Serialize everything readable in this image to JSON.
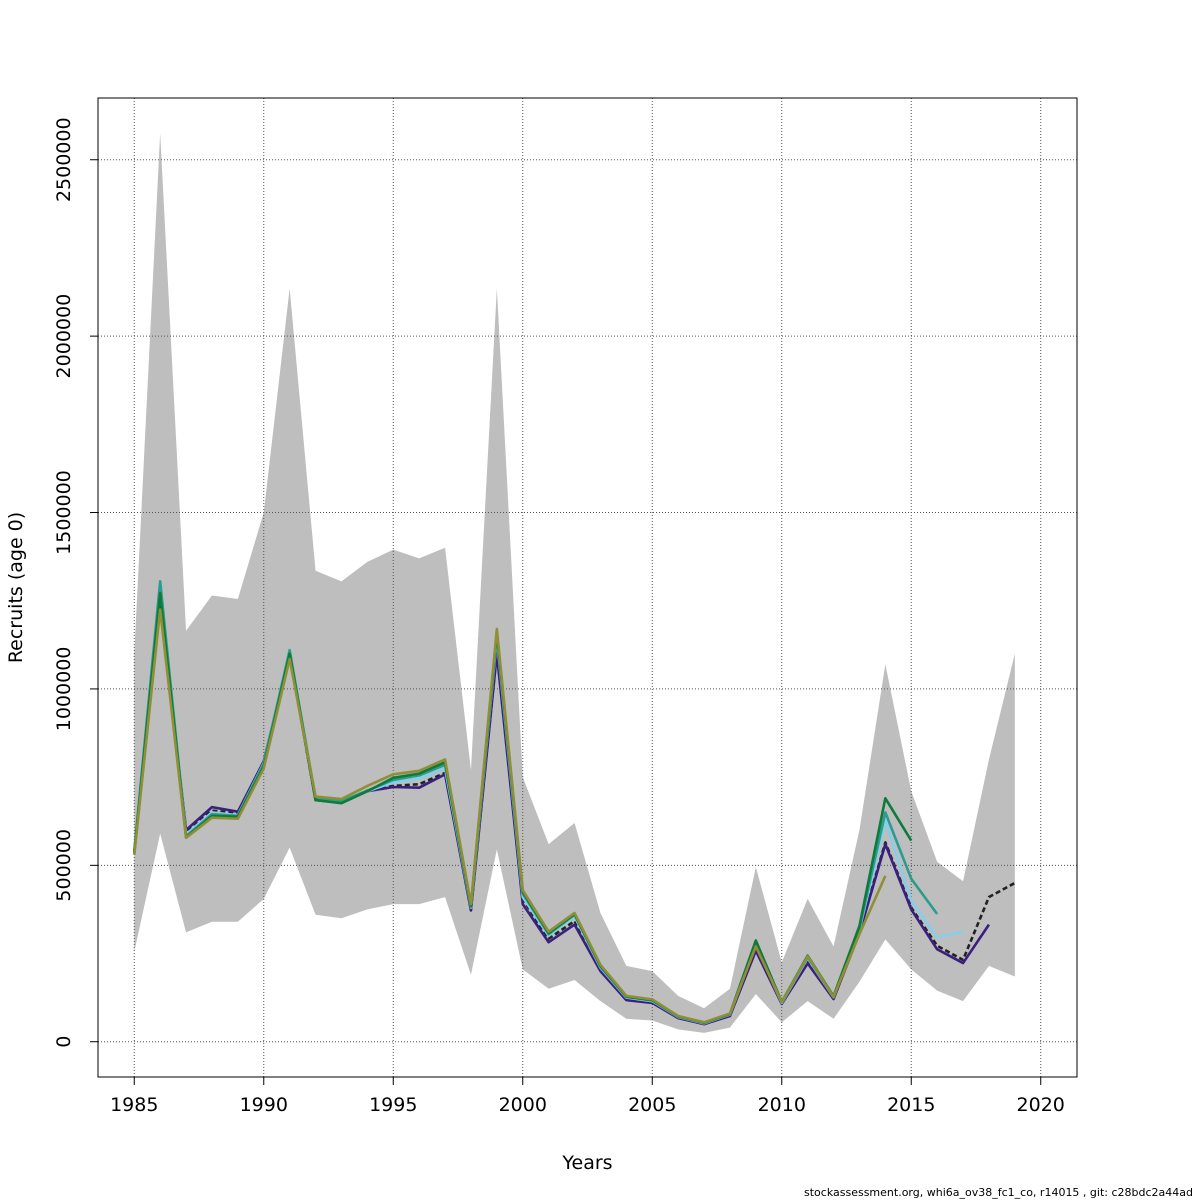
{
  "chart_data": {
    "type": "line",
    "xlabel": "Years",
    "ylabel": "Recruits (age 0)",
    "xlim": [
      1983.6,
      2021.4
    ],
    "ylim": [
      -100000,
      2675000
    ],
    "x_ticks": [
      1985,
      1990,
      1995,
      2000,
      2005,
      2010,
      2015,
      2020
    ],
    "x_tick_labels": [
      "1985",
      "1990",
      "1995",
      "2000",
      "2005",
      "2010",
      "2015",
      "2020"
    ],
    "y_ticks": [
      0,
      500000,
      1000000,
      1500000,
      2000000,
      2500000
    ],
    "y_tick_labels": [
      "0",
      "500000",
      "1000000",
      "1500000",
      "2000000",
      "2500000"
    ],
    "grid": true,
    "confidence_band": {
      "color": "#bebebe",
      "x": [
        1985,
        1986,
        1987,
        1988,
        1989,
        1990,
        1991,
        1992,
        1993,
        1994,
        1995,
        1996,
        1997,
        1998,
        1999,
        2000,
        2001,
        2002,
        2003,
        2004,
        2005,
        2006,
        2007,
        2008,
        2009,
        2010,
        2011,
        2012,
        2013,
        2014,
        2015,
        2016,
        2017,
        2018,
        2019
      ],
      "upper": [
        1100000,
        2575000,
        1165000,
        1265000,
        1255000,
        1500000,
        2135000,
        1335000,
        1305000,
        1360000,
        1395000,
        1370000,
        1400000,
        770000,
        2135000,
        750000,
        560000,
        620000,
        365000,
        215000,
        200000,
        130000,
        95000,
        150000,
        495000,
        225000,
        405000,
        270000,
        600000,
        1070000,
        710000,
        510000,
        455000,
        800000,
        1100000
      ],
      "lower": [
        255000,
        590000,
        310000,
        340000,
        340000,
        405000,
        550000,
        360000,
        350000,
        375000,
        390000,
        390000,
        410000,
        190000,
        545000,
        205000,
        150000,
        175000,
        115000,
        65000,
        60000,
        35000,
        25000,
        40000,
        135000,
        55000,
        115000,
        65000,
        170000,
        290000,
        205000,
        145000,
        115000,
        215000,
        185000
      ]
    },
    "series": [
      {
        "color": "#222222",
        "dashed": true,
        "x": [
          1985,
          1986,
          1987,
          1988,
          1989,
          1990,
          1991,
          1992,
          1993,
          1994,
          1995,
          1996,
          1997,
          1998,
          1999,
          2000,
          2001,
          2002,
          2003,
          2004,
          2005,
          2006,
          2007,
          2008,
          2009,
          2010,
          2011,
          2012,
          2013,
          2014,
          2015,
          2016,
          2017,
          2018,
          2019
        ],
        "values": [
          535000,
          1250000,
          595000,
          655000,
          648000,
          790000,
          1095000,
          685000,
          678000,
          712000,
          725000,
          730000,
          762000,
          375000,
          1105000,
          405000,
          292000,
          342000,
          205000,
          122000,
          112000,
          68000,
          50000,
          74000,
          262000,
          108000,
          228000,
          123000,
          312000,
          565000,
          380000,
          272000,
          232000,
          410000,
          450000
        ]
      },
      {
        "color": "#3b1f7e",
        "dashed": false,
        "x": [
          1985,
          1986,
          1987,
          1988,
          1989,
          1990,
          1991,
          1992,
          1993,
          1994,
          1995,
          1996,
          1997,
          1998,
          1999,
          2000,
          2001,
          2002,
          2003,
          2004,
          2005,
          2006,
          2007,
          2008,
          2009,
          2010,
          2011,
          2012,
          2013,
          2014,
          2015,
          2016,
          2017,
          2018
        ],
        "values": [
          535000,
          1250000,
          600000,
          665000,
          652000,
          795000,
          1100000,
          685000,
          678000,
          710000,
          722000,
          720000,
          758000,
          372000,
          1100000,
          390000,
          282000,
          332000,
          200000,
          118000,
          110000,
          67000,
          50000,
          73000,
          258000,
          107000,
          222000,
          121000,
          308000,
          560000,
          375000,
          262000,
          223000,
          332000
        ]
      },
      {
        "color": "#87ceeb",
        "dashed": false,
        "x": [
          1985,
          1986,
          1987,
          1988,
          1989,
          1990,
          1991,
          1992,
          1993,
          1994,
          1995,
          1996,
          1997,
          1998,
          1999,
          2000,
          2001,
          2002,
          2003,
          2004,
          2005,
          2006,
          2007,
          2008,
          2009,
          2010,
          2011,
          2012,
          2013,
          2014,
          2015,
          2016,
          2017
        ],
        "values": [
          538000,
          1290000,
          588000,
          650000,
          642000,
          790000,
          1110000,
          688000,
          680000,
          710000,
          735000,
          745000,
          775000,
          380000,
          1145000,
          410000,
          300000,
          355000,
          210000,
          125000,
          115000,
          70000,
          52000,
          77000,
          275000,
          110000,
          237000,
          126000,
          318000,
          625000,
          400000,
          295000,
          312000
        ]
      },
      {
        "color": "#2a9d8f",
        "dashed": false,
        "x": [
          1985,
          1986,
          1987,
          1988,
          1989,
          1990,
          1991,
          1992,
          1993,
          1994,
          1995,
          1996,
          1997,
          1998,
          1999,
          2000,
          2001,
          2002,
          2003,
          2004,
          2005,
          2006,
          2007,
          2008,
          2009,
          2010,
          2011,
          2012,
          2013,
          2014,
          2015,
          2016
        ],
        "values": [
          540000,
          1305000,
          582000,
          645000,
          640000,
          788000,
          1110000,
          690000,
          682000,
          712000,
          742000,
          755000,
          785000,
          382000,
          1155000,
          420000,
          305000,
          360000,
          213000,
          127000,
          117000,
          71000,
          53000,
          78000,
          280000,
          112000,
          240000,
          127000,
          322000,
          650000,
          462000,
          362000
        ]
      },
      {
        "color": "#0f7a3a",
        "dashed": false,
        "x": [
          1985,
          1986,
          1987,
          1988,
          1989,
          1990,
          1991,
          1992,
          1993,
          1994,
          1995,
          1996,
          1997,
          1998,
          1999,
          2000,
          2001,
          2002,
          2003,
          2004,
          2005,
          2006,
          2007,
          2008,
          2009,
          2010,
          2011,
          2012,
          2013,
          2014,
          2015
        ],
        "values": [
          535000,
          1272000,
          580000,
          640000,
          638000,
          780000,
          1100000,
          685000,
          676000,
          710000,
          748000,
          760000,
          792000,
          385000,
          1160000,
          425000,
          308000,
          362000,
          215000,
          128000,
          118000,
          72000,
          54000,
          79000,
          287000,
          113000,
          244000,
          129000,
          328000,
          690000,
          570000
        ]
      },
      {
        "color": "#8f8f35",
        "dashed": false,
        "x": [
          1985,
          1986,
          1987,
          1988,
          1989,
          1990,
          1991,
          1992,
          1993,
          1994,
          1995,
          1996,
          1997,
          1998,
          1999,
          2000,
          2001,
          2002,
          2003,
          2004,
          2005,
          2006,
          2007,
          2008,
          2009,
          2010,
          2011,
          2012,
          2013,
          2014
        ],
        "values": [
          530000,
          1225000,
          578000,
          635000,
          632000,
          775000,
          1085000,
          695000,
          688000,
          725000,
          758000,
          768000,
          800000,
          390000,
          1170000,
          430000,
          312000,
          365000,
          218000,
          130000,
          120000,
          73000,
          55000,
          80000,
          270000,
          113000,
          242000,
          127000,
          305000,
          470000
        ]
      }
    ]
  },
  "footer": {
    "text": "stockassessment.org, whi6a_ov38_fc1_co, r14015 , git: c28bdc2a44ad"
  }
}
